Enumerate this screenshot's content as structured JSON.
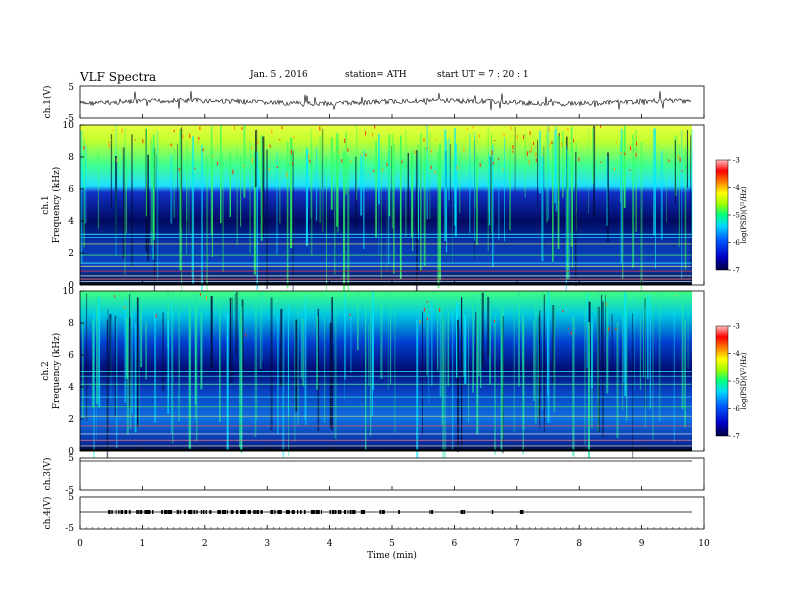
{
  "header": {
    "title": "VLF Spectra",
    "date": "Jan. 5 , 2016",
    "station": "station= ATH",
    "start": "start UT = 7 : 20 : 1"
  },
  "chart_data": [
    {
      "type": "line",
      "panel": "ch1-waveform",
      "ylabel": "ch.1(V)",
      "ylim": [
        -5,
        5
      ],
      "y_ticks": [
        "5",
        "-5"
      ],
      "description_of_signal": "dense noisy waveform centered near 0 V with spikes",
      "x_range_min": [
        0,
        9.8
      ]
    },
    {
      "type": "heatmap",
      "panel": "ch1-spectrogram",
      "ylabel_channel": "ch.1",
      "ylabel": "Frequency (kHz)",
      "ylim": [
        0,
        10
      ],
      "y_ticks": [
        "0",
        "2",
        "4",
        "6",
        "8",
        "10"
      ],
      "colorbar": {
        "label": "log(PSD)(V²/Hz)",
        "range": [
          -7,
          -3
        ],
        "ticks": [
          "-3",
          "-4",
          "-5",
          "-6",
          "-7"
        ],
        "colors": [
          "#000040",
          "#0000c8",
          "#0060ff",
          "#00d8ff",
          "#00ff80",
          "#a0ff00",
          "#ffff00",
          "#ff8000",
          "#ff0000",
          "#ffc0c0"
        ]
      }
    },
    {
      "type": "heatmap",
      "panel": "ch2-spectrogram",
      "ylabel_channel": "ch.2",
      "ylabel": "Frequency (kHz)",
      "ylim": [
        0,
        10
      ],
      "y_ticks": [
        "0",
        "2",
        "4",
        "6",
        "8",
        "10"
      ],
      "colorbar": {
        "label": "log(PSD)(V²/Hz)",
        "range": [
          -7,
          -3
        ],
        "ticks": [
          "-3",
          "-4",
          "-5",
          "-6",
          "-7"
        ]
      }
    },
    {
      "type": "line",
      "panel": "ch3-waveform",
      "ylabel": "ch.3(V)",
      "ylim": [
        -5,
        5
      ],
      "y_ticks": [
        "5",
        "-5"
      ],
      "description_of_signal": "flat line near 0 V"
    },
    {
      "type": "line",
      "panel": "ch4-waveform",
      "ylabel": "ch.4(V)",
      "ylim": [
        -5,
        5
      ],
      "y_ticks": [
        "5",
        "-5"
      ],
      "description_of_signal": "line near 0 V with intermittent pulses"
    }
  ],
  "xaxis": {
    "label": "Time (min)",
    "ticks": [
      "0",
      "1",
      "2",
      "3",
      "4",
      "5",
      "6",
      "7",
      "8",
      "9",
      "10"
    ],
    "range": [
      0,
      10
    ]
  }
}
